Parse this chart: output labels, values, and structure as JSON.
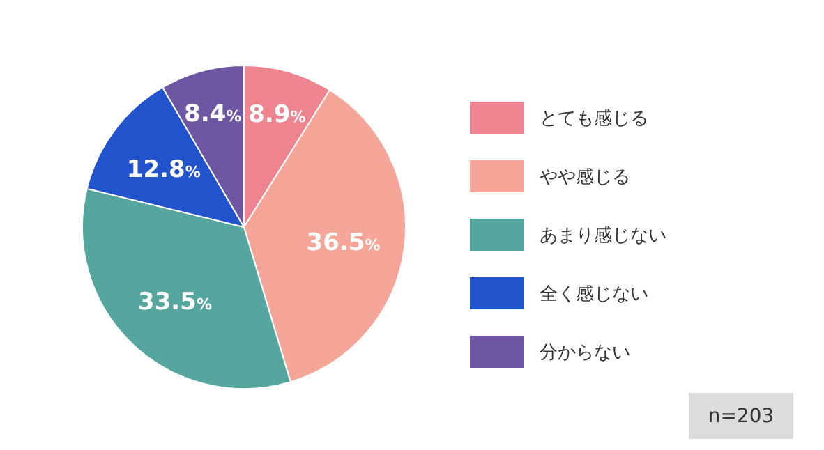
{
  "chart_data": {
    "type": "pie",
    "categories": [
      "とても感じる",
      "やや感じる",
      "あまり感じない",
      "全く感じない",
      "分からない"
    ],
    "values": [
      8.9,
      36.5,
      33.5,
      12.8,
      8.4
    ],
    "colors": [
      "#ee8490",
      "#f6a698",
      "#55a69f",
      "#2154cc",
      "#6f56a2"
    ],
    "value_labels": [
      "8.9%",
      "36.5%",
      "33.5%",
      "12.8%",
      "8.4%"
    ],
    "legend": "right",
    "annotations": [
      "n=203"
    ]
  }
}
